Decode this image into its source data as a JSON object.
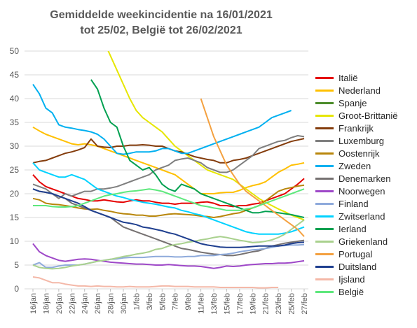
{
  "title_line1": "Gemiddelde weekincidentie  na 16/01/2021",
  "title_line2": "tot 25/02, België tot 26/02/2021",
  "chart_data": {
    "type": "line",
    "title": "Gemiddelde weekincidentie  na 16/01/2021 tot 25/02, België tot 26/02/2021",
    "xlabel": "",
    "ylabel": "",
    "ylim": [
      0,
      50
    ],
    "yticks": [
      0,
      5,
      10,
      15,
      20,
      25,
      30,
      35,
      40,
      45,
      50
    ],
    "xtick_labels": [
      "16/jan",
      "18/jan",
      "20/jan",
      "22/jan",
      "24/jan",
      "26/jan",
      "28/jan",
      "30/jan",
      "1/feb",
      "3/feb",
      "5/feb",
      "7/feb",
      "9/feb",
      "11/feb",
      "13/feb",
      "15/feb",
      "17/feb",
      "19/feb",
      "21/feb",
      "23/feb",
      "25/feb",
      "27/feb"
    ],
    "x": [
      "16/jan",
      "17/jan",
      "18/jan",
      "19/jan",
      "20/jan",
      "21/jan",
      "22/jan",
      "23/jan",
      "24/jan",
      "25/jan",
      "26/jan",
      "27/jan",
      "28/jan",
      "29/jan",
      "30/jan",
      "31/jan",
      "1/feb",
      "2/feb",
      "3/feb",
      "4/feb",
      "5/feb",
      "6/feb",
      "7/feb",
      "8/feb",
      "9/feb",
      "10/feb",
      "11/feb",
      "12/feb",
      "13/feb",
      "14/feb",
      "15/feb",
      "16/feb",
      "17/feb",
      "18/feb",
      "19/feb",
      "20/feb",
      "21/feb",
      "22/feb",
      "23/feb",
      "24/feb",
      "25/feb",
      "26/feb",
      "27/feb"
    ],
    "grid": "horizontal",
    "legend": "right",
    "series": [
      {
        "name": "Italië",
        "color": "#e50000",
        "values": [
          24,
          22.5,
          21.5,
          21,
          20.5,
          20,
          19.5,
          19,
          18.8,
          18.5,
          18.5,
          18.7,
          18.5,
          18.3,
          18.2,
          18.5,
          18.7,
          18.5,
          18.5,
          18.2,
          18,
          18,
          17.8,
          18,
          18,
          18,
          18.2,
          18.3,
          18,
          17.5,
          17.5,
          17.3,
          17.5,
          17.5,
          17.8,
          18,
          18.5,
          19,
          19.5,
          20,
          21,
          22,
          23.2
        ]
      },
      {
        "name": "Nederland",
        "color": "#ffc000",
        "values": [
          34,
          33.2,
          32.5,
          32,
          31.5,
          31,
          30.5,
          30.3,
          30.5,
          30.3,
          30,
          29.5,
          29,
          28.5,
          28,
          27.5,
          27,
          26.5,
          26,
          25.5,
          25,
          24.5,
          24,
          23,
          22,
          21,
          20,
          20,
          20,
          20.2,
          20.3,
          20.3,
          20.7,
          21.3,
          21.7,
          22,
          22.5,
          23.5,
          24.5,
          25.2,
          26,
          26.2,
          26.5
        ]
      },
      {
        "name": "Spanje",
        "color": "#4c8c2b",
        "values": [
          null,
          null,
          null,
          null,
          null,
          null,
          null,
          null,
          null,
          null,
          null,
          null,
          null,
          null,
          null,
          null,
          null,
          null,
          null,
          null,
          null,
          null,
          null,
          null,
          null,
          null,
          null,
          null,
          null,
          null,
          null,
          null,
          null,
          null,
          null,
          null,
          null,
          null,
          null,
          null,
          null,
          null,
          null
        ]
      },
      {
        "name": "Groot-Brittanië",
        "color": "#e6e600",
        "values": [
          null,
          null,
          null,
          null,
          null,
          null,
          null,
          null,
          null,
          null,
          null,
          52,
          49,
          46,
          43,
          40,
          37.5,
          36,
          35,
          34,
          33,
          31.5,
          30,
          29,
          28,
          27,
          26,
          25,
          24.5,
          24,
          23.5,
          23,
          22,
          21,
          20,
          19,
          18.2,
          17.5,
          16.8,
          16.2,
          15.5,
          15,
          14.5
        ]
      },
      {
        "name": "Frankrijk",
        "color": "#843c0c",
        "values": [
          26.5,
          26.8,
          27,
          27.5,
          28,
          28.5,
          28.8,
          29.2,
          29.7,
          31.5,
          30,
          29.8,
          29.7,
          30,
          30,
          30.2,
          30.2,
          30.3,
          30.2,
          30,
          30,
          29.5,
          29,
          28.8,
          28.3,
          27.8,
          27.5,
          27.2,
          27,
          26.5,
          26.5,
          27,
          27.2,
          27.5,
          28,
          28.5,
          29,
          29.5,
          30,
          30.5,
          31,
          31.3,
          31.6
        ]
      },
      {
        "name": "Luxemburg",
        "color": "#7f7f7f",
        "values": [
          22,
          21.5,
          21,
          20,
          19,
          20,
          19.5,
          20,
          20.5,
          20.5,
          21,
          21,
          21.2,
          21.5,
          22,
          22.5,
          23,
          23.5,
          24,
          25,
          25.5,
          26,
          27,
          27.3,
          27.5,
          27,
          26.5,
          25.5,
          25,
          24.5,
          24.5,
          25,
          26,
          27,
          28,
          29.5,
          30,
          30.5,
          31,
          31.2,
          31.8,
          32.2,
          32
        ]
      },
      {
        "name": "Oostenrijk",
        "color": "#b8860b",
        "values": [
          19,
          18.7,
          18,
          17.8,
          17.7,
          17.5,
          17.3,
          17,
          16.8,
          16.7,
          16.8,
          16.5,
          16.3,
          16,
          15.8,
          15.7,
          15.5,
          15.5,
          15.3,
          15.3,
          15.5,
          15.7,
          15.8,
          15.7,
          15.6,
          15.5,
          15.3,
          15.2,
          15,
          15.2,
          15.5,
          15.8,
          16,
          16.5,
          17,
          17.5,
          18.5,
          19.5,
          20.5,
          21,
          21.3,
          21.6,
          21.8
        ]
      },
      {
        "name": "Zweden",
        "color": "#00b0f0",
        "values": [
          43,
          41,
          38,
          37,
          34.5,
          34,
          33.8,
          33.5,
          33.3,
          33,
          32.5,
          31.5,
          30,
          28.5,
          28.3,
          28.5,
          28.8,
          28.8,
          28.8,
          29,
          29.5,
          29.5,
          29,
          28.5,
          28.5,
          29,
          29.5,
          30,
          30.5,
          31,
          31.5,
          32,
          32.5,
          33,
          33.5,
          34,
          35,
          36,
          36.5,
          37,
          37.5,
          null,
          null
        ]
      },
      {
        "name": "Denemarken",
        "color": "#767171",
        "values": [
          21,
          20.5,
          20.3,
          20,
          19.5,
          19,
          18,
          17.5,
          17,
          16.5,
          16,
          15.5,
          15,
          14,
          13,
          12.5,
          12,
          11.5,
          11,
          10.5,
          10,
          9.5,
          9,
          8.5,
          8.3,
          8,
          7.7,
          7.5,
          7.3,
          7.2,
          7,
          7,
          7.2,
          7.5,
          7.8,
          8,
          8.5,
          9,
          9.3,
          9.6,
          9.8,
          10,
          10.2
        ]
      },
      {
        "name": "Noorwegen",
        "color": "#9e48c8",
        "values": [
          9.5,
          7.8,
          7,
          6.5,
          6,
          5.8,
          6,
          6.2,
          6.3,
          6.2,
          6,
          5.8,
          5.6,
          5.5,
          5.4,
          5.3,
          5.2,
          5.2,
          5.1,
          5,
          5,
          5.1,
          5,
          4.9,
          4.8,
          4.8,
          4.7,
          4.5,
          4.3,
          4.5,
          4.8,
          4.7,
          4.8,
          5,
          5.1,
          5.2,
          5.3,
          5.3,
          5.4,
          5.4,
          5.5,
          5.7,
          5.9
        ]
      },
      {
        "name": "Finland",
        "color": "#8eaadb",
        "values": [
          5,
          5.5,
          4.5,
          4.5,
          4.8,
          5,
          5,
          5,
          5.2,
          5.5,
          5.8,
          6,
          6.2,
          6.3,
          6.5,
          6.6,
          6.6,
          6.6,
          6.7,
          6.8,
          6.8,
          6.8,
          6.7,
          6.7,
          6.8,
          6.8,
          7,
          7,
          7,
          7.2,
          7.3,
          7.5,
          7.8,
          8,
          8.2,
          8.3,
          8.5,
          8.7,
          9,
          9.1,
          9.2,
          9.2,
          9.3
        ]
      },
      {
        "name": "Zwitserland",
        "color": "#00d2ff",
        "values": [
          26.5,
          25,
          24.5,
          24,
          23.5,
          23.5,
          24,
          23.5,
          23,
          22,
          21,
          20.5,
          20,
          19.5,
          19.2,
          18.8,
          18.5,
          18.2,
          18,
          17.8,
          17.5,
          17.2,
          17,
          16.5,
          16.2,
          15.8,
          15.5,
          15,
          14.5,
          14,
          13.5,
          13,
          12.5,
          12,
          11.7,
          11.5,
          11.5,
          11.5,
          11.5,
          11.7,
          12,
          12.5,
          13
        ]
      },
      {
        "name": "Ierland",
        "color": "#00a050",
        "values": [
          null,
          null,
          null,
          null,
          null,
          null,
          null,
          null,
          null,
          44,
          42,
          38,
          35,
          34,
          30,
          27,
          26,
          25,
          25.5,
          24,
          22,
          21,
          20.5,
          22,
          21.5,
          21,
          20,
          19.5,
          19,
          18.5,
          18,
          17.5,
          17,
          16.5,
          16,
          16,
          16.3,
          16.2,
          16,
          15.8,
          15.6,
          15.3,
          15
        ]
      },
      {
        "name": "Griekenland",
        "color": "#a9d18e",
        "values": [
          5,
          4.5,
          4.3,
          4.2,
          4.3,
          4.5,
          4.8,
          5,
          5.2,
          5.5,
          5.8,
          6,
          6.2,
          6.5,
          6.8,
          7,
          7.3,
          7.5,
          7.8,
          8.3,
          8.5,
          9,
          9.3,
          9.5,
          9.8,
          10,
          10.3,
          10.5,
          10.8,
          11,
          10.8,
          10.5,
          10.2,
          10,
          9.7,
          9.8,
          10,
          10.3,
          10.8,
          11.5,
          12.5,
          13.5,
          14.5
        ]
      },
      {
        "name": "Portugal",
        "color": "#f4a140",
        "values": [
          null,
          null,
          null,
          null,
          null,
          null,
          null,
          null,
          null,
          null,
          null,
          null,
          null,
          null,
          null,
          null,
          null,
          null,
          null,
          null,
          null,
          null,
          null,
          null,
          null,
          null,
          40,
          36,
          32,
          29,
          26,
          24,
          22,
          20.5,
          19.5,
          18.5,
          17.5,
          16.5,
          15.5,
          14.5,
          13.5,
          12.5,
          11
        ]
      },
      {
        "name": "Duitsland",
        "color": "#1f3f8f",
        "values": [
          21,
          20.5,
          20.3,
          20,
          19.5,
          19,
          18.5,
          18,
          17.3,
          16.5,
          16,
          15.5,
          15,
          14.5,
          14,
          13.8,
          13.5,
          13,
          12.8,
          12.5,
          12.2,
          11.8,
          11.5,
          11,
          10.5,
          10,
          9.5,
          9.2,
          9,
          8.8,
          8.7,
          8.7,
          8.7,
          8.8,
          8.9,
          9,
          9,
          9,
          9,
          9.2,
          9.5,
          9.7,
          9.8
        ]
      },
      {
        "name": "IJsland",
        "color": "#f4b8a8",
        "values": [
          2.5,
          2.3,
          1.8,
          1.3,
          1.3,
          1,
          0.8,
          0.6,
          0.6,
          0.5,
          0.6,
          0.5,
          0.5,
          0.4,
          0.4,
          0.5,
          0.4,
          0.4,
          0.4,
          0.5,
          0.6,
          0.6,
          0.5,
          0.5,
          0.5,
          0.4,
          0.4,
          0.4,
          0.4,
          0.3,
          0.3,
          0.3,
          0.3,
          0.3,
          0.3,
          0.2,
          0.2,
          0.3,
          0.3,
          null,
          null,
          null,
          null
        ]
      },
      {
        "name": "België",
        "color": "#5ee87d",
        "values": [
          17.5,
          17.5,
          17.5,
          17.3,
          17.2,
          17.2,
          17.3,
          17.5,
          18,
          18.5,
          19,
          19.5,
          19.8,
          20,
          20.3,
          20.5,
          20.6,
          20.8,
          21,
          20.8,
          20.5,
          20,
          19.5,
          19,
          18.5,
          18,
          17.5,
          17.3,
          17,
          16.8,
          16.5,
          16.5,
          16.5,
          16.8,
          17,
          17.5,
          18,
          18.5,
          19,
          19.5,
          20,
          20.5,
          21
        ]
      }
    ]
  },
  "legend_labels": [
    "Italië",
    "Nederland",
    "Spanje",
    "Groot-Brittanië",
    "Frankrijk",
    "Luxemburg",
    "Oostenrijk",
    "Zweden",
    "Denemarken",
    "Noorwegen",
    "Finland",
    "Zwitserland",
    "Ierland",
    "Griekenland",
    "Portugal",
    "Duitsland",
    "Ijsland",
    "België"
  ]
}
